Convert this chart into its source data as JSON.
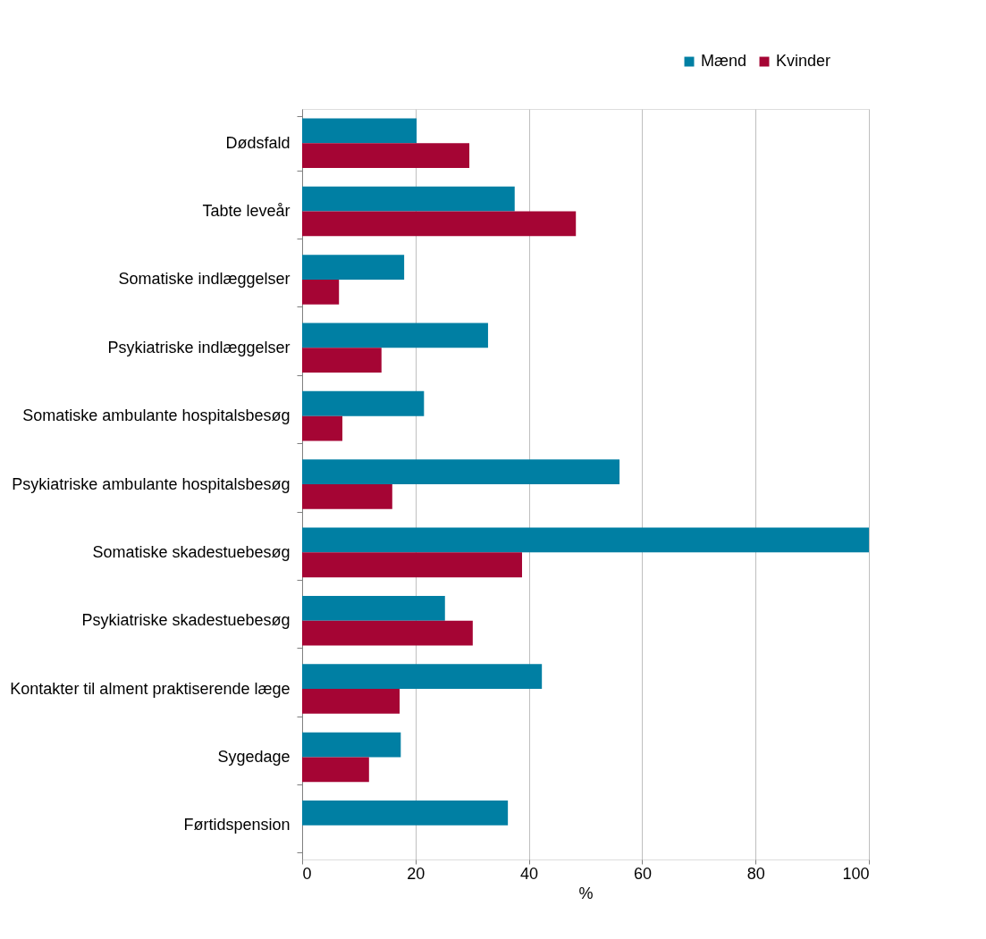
{
  "chart_data": {
    "type": "bar",
    "orientation": "horizontal",
    "xlabel": "%",
    "categories": [
      "Dødsfald",
      "Tabte leveår",
      "Somatiske indlæggelser",
      "Psykiatriske indlæggelser",
      "Somatiske ambulante hospitalsbesøg",
      "Psykiatriske ambulante hospitalsbesøg",
      "Somatiske skadestuebesøg",
      "Psykiatriske skadestuebesøg",
      "Kontakter til alment praktiserende læge",
      "Sygedage",
      "Førtidspension"
    ],
    "series": [
      {
        "name": "Mænd",
        "color": "#007fa3",
        "values": [
          20.2,
          37.5,
          18.0,
          32.8,
          21.5,
          56.0,
          100,
          25.2,
          42.3,
          17.4,
          36.3
        ]
      },
      {
        "name": "Kvinder",
        "color": "#a50534",
        "values": [
          29.5,
          48.3,
          6.5,
          14.0,
          7.1,
          15.9,
          38.8,
          30.1,
          17.2,
          11.8,
          null
        ]
      }
    ],
    "xlim": [
      0,
      100
    ],
    "xticks": [
      0,
      20,
      40,
      60,
      80,
      100
    ],
    "grid": "x",
    "legend": "top right"
  }
}
